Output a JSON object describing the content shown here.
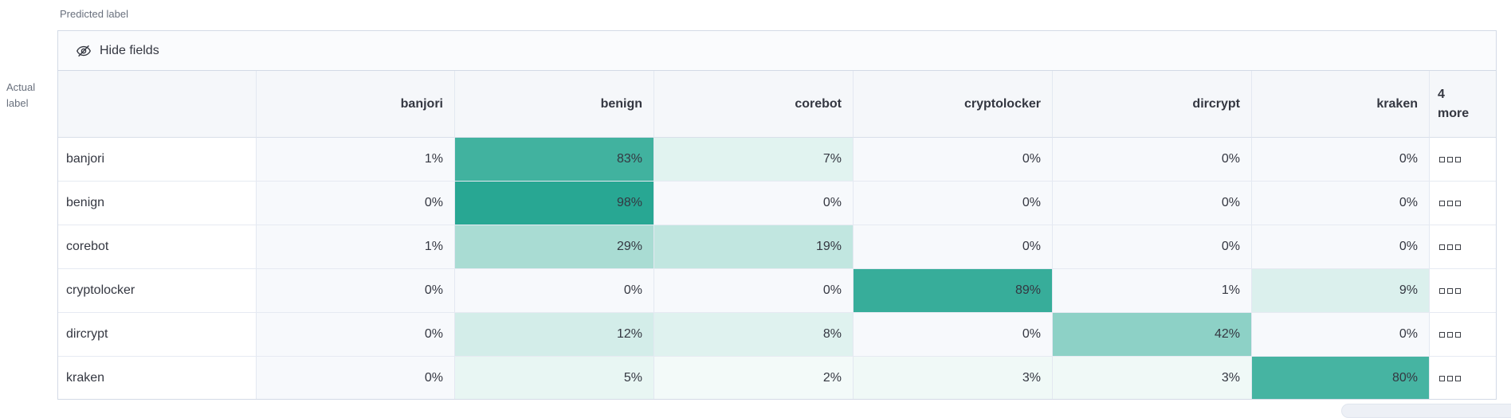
{
  "axes": {
    "predicted_label": "Predicted label",
    "actual_label": "Actual label"
  },
  "toolbar": {
    "hide_fields_label": "Hide fields",
    "hide_fields_icon": "eye-closed-icon"
  },
  "style": {
    "heat_base_rgb": "37,166,145",
    "zero_cell_bg": "#f7f9fc",
    "header_bg": "#f5f7fa",
    "panel_border": "#d3dae6",
    "cell_text": "#343741",
    "muted_text": "#69707d"
  },
  "chart_data": {
    "type": "heatmap",
    "x_axis_title": "Predicted label",
    "y_axis_title": "Actual label",
    "columns": [
      "banjori",
      "benign",
      "corebot",
      "cryptolocker",
      "dircrypt",
      "kraken"
    ],
    "extra_columns_label": "4 more",
    "row_actions_icon": "boxes-horizontal-icon",
    "value_format": "percent",
    "legend": "none",
    "rows": [
      {
        "label": "banjori",
        "values": [
          1,
          83,
          7,
          0,
          0,
          0
        ]
      },
      {
        "label": "benign",
        "values": [
          0,
          98,
          0,
          0,
          0,
          0
        ]
      },
      {
        "label": "corebot",
        "values": [
          1,
          29,
          19,
          0,
          0,
          0
        ]
      },
      {
        "label": "cryptolocker",
        "values": [
          0,
          0,
          0,
          89,
          1,
          9
        ]
      },
      {
        "label": "dircrypt",
        "values": [
          0,
          12,
          8,
          0,
          42,
          0
        ]
      },
      {
        "label": "kraken",
        "values": [
          0,
          5,
          2,
          3,
          3,
          80
        ]
      }
    ]
  }
}
